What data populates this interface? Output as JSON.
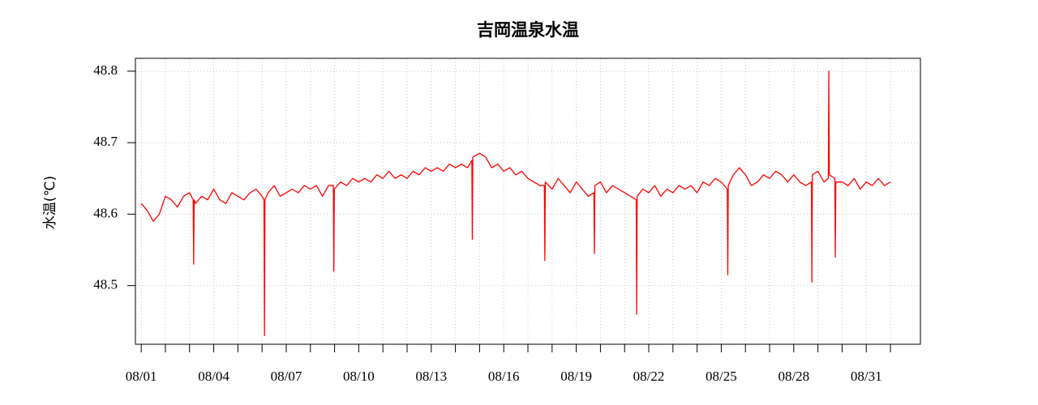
{
  "chart_data": {
    "type": "line",
    "title": "吉岡温泉水温",
    "y_label": "水温(℃)",
    "x": [
      1.0,
      1.25,
      1.5,
      1.75,
      2.0,
      2.25,
      2.5,
      2.75,
      3.0,
      3.15,
      3.17,
      3.19,
      3.25,
      3.5,
      3.75,
      4.0,
      4.25,
      4.5,
      4.75,
      5.0,
      5.25,
      5.5,
      5.75,
      6.0,
      6.08,
      6.1,
      6.12,
      6.25,
      6.5,
      6.75,
      7.0,
      7.25,
      7.5,
      7.75,
      8.0,
      8.25,
      8.5,
      8.75,
      8.95,
      8.97,
      8.99,
      9.25,
      9.5,
      9.75,
      10.0,
      10.25,
      10.5,
      10.75,
      11.0,
      11.25,
      11.5,
      11.75,
      12.0,
      12.25,
      12.5,
      12.75,
      13.0,
      13.25,
      13.5,
      13.75,
      14.0,
      14.25,
      14.5,
      14.68,
      14.7,
      14.72,
      15.0,
      15.25,
      15.5,
      15.75,
      16.0,
      16.25,
      16.5,
      16.75,
      17.0,
      17.25,
      17.5,
      17.68,
      17.7,
      17.72,
      18.0,
      18.25,
      18.5,
      18.75,
      19.0,
      19.25,
      19.5,
      19.73,
      19.75,
      19.77,
      20.0,
      20.25,
      20.5,
      20.75,
      21.0,
      21.25,
      21.48,
      21.5,
      21.52,
      21.75,
      22.0,
      22.25,
      22.5,
      22.75,
      23.0,
      23.25,
      23.5,
      23.75,
      24.0,
      24.25,
      24.5,
      24.75,
      25.0,
      25.25,
      25.27,
      25.29,
      25.5,
      25.75,
      26.0,
      26.25,
      26.5,
      26.75,
      27.0,
      27.25,
      27.5,
      27.75,
      28.0,
      28.25,
      28.5,
      28.73,
      28.75,
      28.77,
      29.0,
      29.25,
      29.43,
      29.45,
      29.47,
      29.7,
      29.72,
      29.74,
      30.0,
      30.25,
      30.5,
      30.75,
      31.0,
      31.25,
      31.5,
      31.75,
      32.0
    ],
    "series": [
      {
        "color": "#ff0000",
        "values": [
          48.615,
          48.605,
          48.59,
          48.6,
          48.625,
          48.62,
          48.61,
          48.625,
          48.63,
          48.62,
          48.53,
          48.62,
          48.615,
          48.625,
          48.62,
          48.635,
          48.62,
          48.615,
          48.63,
          48.625,
          48.62,
          48.63,
          48.635,
          48.625,
          48.62,
          48.43,
          48.62,
          48.63,
          48.64,
          48.625,
          48.63,
          48.635,
          48.63,
          48.64,
          48.635,
          48.64,
          48.625,
          48.64,
          48.64,
          48.52,
          48.635,
          48.645,
          48.64,
          48.65,
          48.645,
          48.65,
          48.645,
          48.655,
          48.65,
          48.66,
          48.65,
          48.655,
          48.65,
          48.66,
          48.655,
          48.665,
          48.66,
          48.665,
          48.66,
          48.67,
          48.665,
          48.67,
          48.665,
          48.675,
          48.565,
          48.68,
          48.685,
          48.68,
          48.665,
          48.67,
          48.66,
          48.665,
          48.655,
          48.66,
          48.65,
          48.645,
          48.64,
          48.64,
          48.535,
          48.645,
          48.635,
          48.65,
          48.64,
          48.63,
          48.645,
          48.635,
          48.625,
          48.63,
          48.545,
          48.64,
          48.645,
          48.63,
          48.64,
          48.635,
          48.63,
          48.625,
          48.62,
          48.46,
          48.625,
          48.635,
          48.63,
          48.64,
          48.625,
          48.635,
          48.63,
          48.64,
          48.635,
          48.64,
          48.63,
          48.645,
          48.64,
          48.65,
          48.645,
          48.635,
          48.515,
          48.64,
          48.655,
          48.665,
          48.655,
          48.64,
          48.645,
          48.655,
          48.65,
          48.66,
          48.655,
          48.645,
          48.655,
          48.645,
          48.64,
          48.645,
          48.505,
          48.655,
          48.66,
          48.645,
          48.65,
          48.8,
          48.655,
          48.65,
          48.54,
          48.645,
          48.645,
          48.64,
          48.65,
          48.635,
          48.645,
          48.64,
          48.65,
          48.64,
          48.645
        ]
      }
    ],
    "xlim": [
      0.76,
      33.24
    ],
    "xticks": [
      {
        "value": 1,
        "label": "08/01"
      },
      {
        "value": 4,
        "label": "08/04"
      },
      {
        "value": 7,
        "label": "08/07"
      },
      {
        "value": 10,
        "label": "08/10"
      },
      {
        "value": 13,
        "label": "08/13"
      },
      {
        "value": 16,
        "label": "08/16"
      },
      {
        "value": 19,
        "label": "08/19"
      },
      {
        "value": 22,
        "label": "08/22"
      },
      {
        "value": 25,
        "label": "08/25"
      },
      {
        "value": 28,
        "label": "08/28"
      },
      {
        "value": 31,
        "label": "08/31"
      }
    ],
    "xminor_ticks": [
      2,
      3,
      5,
      6,
      8,
      9,
      11,
      12,
      14,
      15,
      17,
      18,
      20,
      21,
      23,
      24,
      26,
      27,
      29,
      30,
      32
    ],
    "ylim": [
      48.418,
      48.818
    ],
    "yticks": [
      48.5,
      48.6,
      48.7,
      48.8
    ],
    "grid": true
  }
}
